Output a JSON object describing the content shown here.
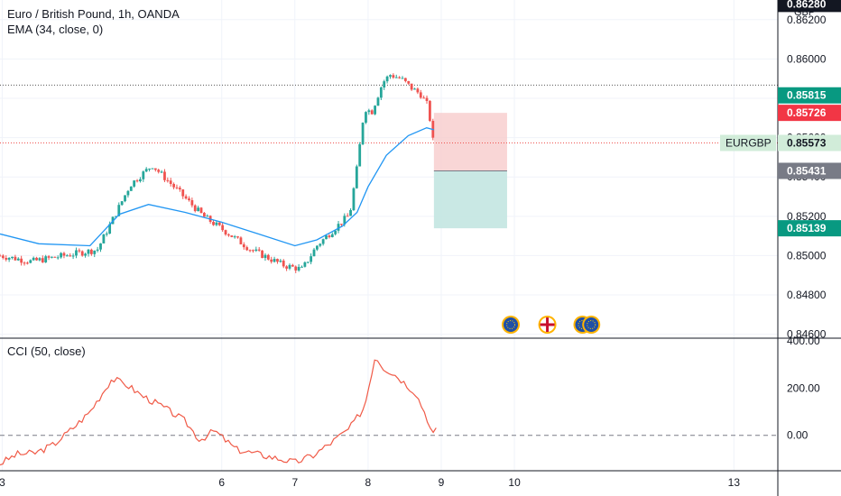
{
  "header": {
    "title": "Euro / British Pound, 1h, OANDA",
    "ema_label": "EMA (34, close, 0)",
    "cci_label": "CCI (50, close)",
    "currency": "GBP"
  },
  "colors": {
    "up": "#26a69a",
    "down": "#ef5350",
    "ema": "#2196f3",
    "cci": "#f05a47",
    "stop_zone": "#f8cccc",
    "target_zone": "#c3e6e1"
  },
  "price_labels": [
    {
      "value": "0.86280",
      "bg": "#131722",
      "color": "#ffffff",
      "price": 0.8628
    },
    {
      "value": "0.85815",
      "bg": "#089981",
      "color": "#ffffff",
      "price": 0.85815
    },
    {
      "value": "0.85726",
      "bg": "#f23645",
      "color": "#ffffff",
      "price": 0.85726
    },
    {
      "value": "0.85573",
      "bg": "#d1ecd9",
      "color": "#131722",
      "price": 0.85573,
      "tag": "EURGBP"
    },
    {
      "value": "0.85431",
      "bg": "#787b86",
      "color": "#ffffff",
      "price": 0.85431
    },
    {
      "value": "0.85139",
      "bg": "#089981",
      "color": "#ffffff",
      "price": 0.85139
    }
  ],
  "events": [
    {
      "flag": "eu",
      "x_day": 9.95
    },
    {
      "flag": "uk",
      "x_day": 10.45
    },
    {
      "flag": "eu",
      "x_day": 10.93
    },
    {
      "flag": "eu",
      "x_day": 11.05
    }
  ],
  "chart_data": [
    {
      "type": "candlestick",
      "title": "Euro / British Pound, 1h, OANDA",
      "x_ticks": [
        {
          "label": "3",
          "day": 3.0
        },
        {
          "label": "6",
          "day": 6.0
        },
        {
          "label": "7",
          "day": 7.0
        },
        {
          "label": "8",
          "day": 8.0
        },
        {
          "label": "9",
          "day": 9.0
        },
        {
          "label": "10",
          "day": 10.0
        },
        {
          "label": "13",
          "day": 13.0
        }
      ],
      "y_ticks": [
        "0.86200",
        "0.86000",
        "0.85800",
        "0.85600",
        "0.85400",
        "0.85200",
        "0.85000",
        "0.84800",
        "0.84600"
      ],
      "ylim": [
        0.8458,
        0.863
      ],
      "xlim": [
        2.97,
        13.6
      ],
      "ohlc_keypoints": [
        {
          "day": 2.97,
          "close": 0.85
        },
        {
          "day": 3.4,
          "close": 0.8497
        },
        {
          "day": 4.3,
          "close": 0.8503
        },
        {
          "day": 4.75,
          "close": 0.8536
        },
        {
          "day": 5.05,
          "close": 0.8546
        },
        {
          "day": 5.4,
          "close": 0.8533
        },
        {
          "day": 5.75,
          "close": 0.852
        },
        {
          "day": 6.1,
          "close": 0.8511
        },
        {
          "day": 6.4,
          "close": 0.8503
        },
        {
          "day": 6.85,
          "close": 0.8495
        },
        {
          "day": 7.1,
          "close": 0.8493
        },
        {
          "day": 7.3,
          "close": 0.8505
        },
        {
          "day": 7.55,
          "close": 0.8514
        },
        {
          "day": 7.75,
          "close": 0.8521
        },
        {
          "day": 7.85,
          "close": 0.8545
        },
        {
          "day": 7.95,
          "close": 0.8575
        },
        {
          "day": 8.05,
          "close": 0.8573
        },
        {
          "day": 8.2,
          "close": 0.8588
        },
        {
          "day": 8.3,
          "close": 0.8592
        },
        {
          "day": 8.45,
          "close": 0.859
        },
        {
          "day": 8.6,
          "close": 0.8585
        },
        {
          "day": 8.72,
          "close": 0.8582
        },
        {
          "day": 8.82,
          "close": 0.8576
        },
        {
          "day": 8.87,
          "close": 0.8563
        },
        {
          "day": 8.9,
          "close": 0.8555
        }
      ],
      "ema_keypoints": [
        {
          "day": 2.97,
          "value": 0.8511
        },
        {
          "day": 3.5,
          "value": 0.8506
        },
        {
          "day": 4.2,
          "value": 0.8505
        },
        {
          "day": 4.6,
          "value": 0.8521
        },
        {
          "day": 5.0,
          "value": 0.8526
        },
        {
          "day": 5.5,
          "value": 0.8522
        },
        {
          "day": 6.0,
          "value": 0.8517
        },
        {
          "day": 6.5,
          "value": 0.8511
        },
        {
          "day": 7.0,
          "value": 0.8505
        },
        {
          "day": 7.3,
          "value": 0.8508
        },
        {
          "day": 7.65,
          "value": 0.8515
        },
        {
          "day": 7.85,
          "value": 0.8522
        },
        {
          "day": 8.0,
          "value": 0.8535
        },
        {
          "day": 8.25,
          "value": 0.8551
        },
        {
          "day": 8.55,
          "value": 0.8561
        },
        {
          "day": 8.8,
          "value": 0.8565
        },
        {
          "day": 8.9,
          "value": 0.8564
        }
      ],
      "position": {
        "entry": 0.85431,
        "stop": 0.85726,
        "target": 0.85139,
        "start_day": 8.9,
        "end_day": 9.9
      },
      "hlines": [
        0.8628,
        0.85573
      ]
    },
    {
      "type": "line",
      "title": "CCI (50, close)",
      "y_ticks": [
        "400.00",
        "200.00",
        "0.00"
      ],
      "ylim": [
        -150,
        400
      ],
      "dashed_level": 0,
      "points": [
        {
          "day": 2.97,
          "value": -120
        },
        {
          "day": 3.2,
          "value": -80
        },
        {
          "day": 3.45,
          "value": -75
        },
        {
          "day": 3.7,
          "value": -40
        },
        {
          "day": 4.0,
          "value": 40
        },
        {
          "day": 4.2,
          "value": 100
        },
        {
          "day": 4.5,
          "value": 240
        },
        {
          "day": 4.7,
          "value": 215
        },
        {
          "day": 4.9,
          "value": 170
        },
        {
          "day": 5.2,
          "value": 120
        },
        {
          "day": 5.5,
          "value": 60
        },
        {
          "day": 5.7,
          "value": -20
        },
        {
          "day": 5.9,
          "value": 20
        },
        {
          "day": 6.2,
          "value": -60
        },
        {
          "day": 6.5,
          "value": -80
        },
        {
          "day": 6.8,
          "value": -100
        },
        {
          "day": 7.0,
          "value": -115
        },
        {
          "day": 7.25,
          "value": -85
        },
        {
          "day": 7.5,
          "value": -30
        },
        {
          "day": 7.75,
          "value": 30
        },
        {
          "day": 7.95,
          "value": 120
        },
        {
          "day": 8.1,
          "value": 340
        },
        {
          "day": 8.2,
          "value": 290
        },
        {
          "day": 8.4,
          "value": 250
        },
        {
          "day": 8.65,
          "value": 180
        },
        {
          "day": 8.8,
          "value": 80
        },
        {
          "day": 8.88,
          "value": 0
        },
        {
          "day": 8.93,
          "value": 20
        }
      ]
    }
  ]
}
